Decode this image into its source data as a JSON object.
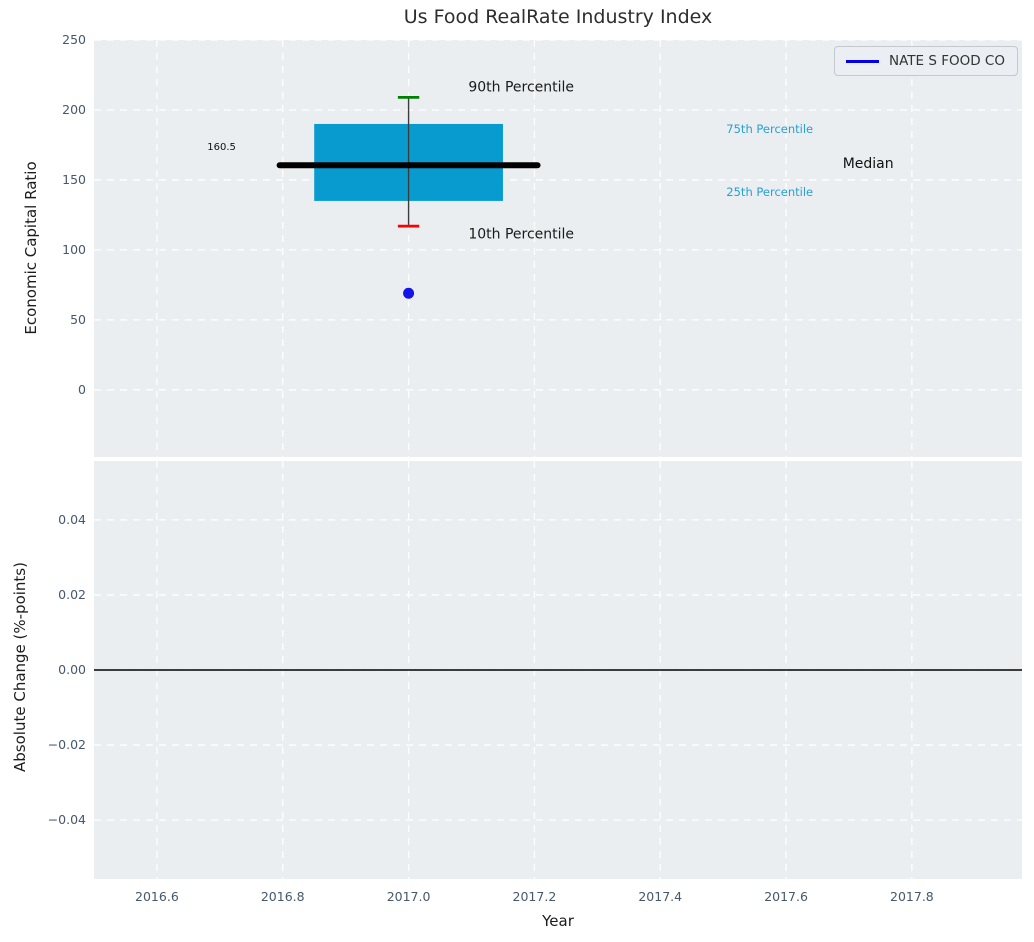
{
  "figure": {
    "title": "Us Food RealRate Industry Index"
  },
  "axes": {
    "x_label": "Year",
    "top_y_label": "Economic Capital Ratio",
    "bottom_y_label": "Absolute Change (%-points)"
  },
  "legend": {
    "label": "NATE S FOOD CO",
    "line_color": "#0000ee"
  },
  "style": {
    "plot_bg": "#eaeef1",
    "grid_color": "#ffffff",
    "tick_color": "#46586c",
    "title_color": "#2d2d2d",
    "label_color": "#1c1c1c"
  },
  "chart_data": [
    {
      "type": "box",
      "title": "Us Food RealRate Industry Index",
      "xlabel": "Year",
      "ylabel": "Economic Capital Ratio",
      "xlim": [
        2016.5,
        2017.975
      ],
      "ylim": [
        -48,
        250
      ],
      "grid": true,
      "xticks": {
        "values": [
          2016.6,
          2016.8,
          2017.0,
          2017.2,
          2017.4,
          2017.6,
          2017.8
        ],
        "labels": [
          "2016.6",
          "2016.8",
          "2017.0",
          "2017.2",
          "2017.4",
          "2017.6",
          "2017.8"
        ]
      },
      "yticks": {
        "values": [
          0,
          50,
          100,
          150,
          200,
          250
        ],
        "labels": [
          "0",
          "50",
          "100",
          "150",
          "200",
          "250"
        ]
      },
      "box": {
        "x": 2017.0,
        "p10": 117,
        "p25": 135,
        "median": 160.5,
        "p75": 190,
        "p90": 209,
        "box_half_width": 0.15,
        "median_half_width": 0.205,
        "cap_half_width": 0.017,
        "box_color": "#089bd0",
        "median_color": "#000000",
        "whisker_color": "#3c3c3c",
        "cap90_color": "#008000",
        "cap10_color": "#ff0000"
      },
      "series": [
        {
          "name": "NATE S FOOD CO",
          "color": "#1414e8",
          "marker": "circle",
          "points": [
            {
              "x": 2017.0,
              "y": 69
            }
          ]
        }
      ],
      "annotations": [
        {
          "text": "90th Percentile",
          "x": 2017.095,
          "y": 216,
          "color": "#1a1a1a",
          "size": 14
        },
        {
          "text": "10th Percentile",
          "x": 2017.095,
          "y": 111,
          "color": "#1a1a1a",
          "size": 14
        },
        {
          "text": "160.5",
          "x": 2016.68,
          "y": 173.5,
          "color": "#111111",
          "size": 10
        },
        {
          "text": "75th Percentile",
          "x": 2017.505,
          "y": 186,
          "color": "#2b9fd1",
          "size": 11.5
        },
        {
          "text": "25th Percentile",
          "x": 2017.505,
          "y": 141,
          "color": "#2b9fd1",
          "size": 11.5
        },
        {
          "text": "Median",
          "x": 2017.69,
          "y": 161.5,
          "color": "#111111",
          "size": 14
        }
      ],
      "legend_position": "upper right"
    },
    {
      "type": "line",
      "xlabel": "Year",
      "ylabel": "Absolute Change (%-points)",
      "xlim": [
        2016.5,
        2017.975
      ],
      "ylim": [
        -0.0557,
        0.0557
      ],
      "grid": true,
      "xticks": {
        "values": [
          2016.6,
          2016.8,
          2017.0,
          2017.2,
          2017.4,
          2017.6,
          2017.8
        ],
        "labels": [
          "2016.6",
          "2016.8",
          "2017.0",
          "2017.2",
          "2017.4",
          "2017.6",
          "2017.8"
        ]
      },
      "yticks": {
        "values": [
          -0.04,
          -0.02,
          0,
          0.02,
          0.04
        ],
        "labels": [
          "−0.04",
          "−0.02",
          "0.00",
          "0.02",
          "0.04"
        ]
      },
      "zero_line": {
        "y": 0,
        "color": "#000000"
      },
      "series": []
    }
  ]
}
